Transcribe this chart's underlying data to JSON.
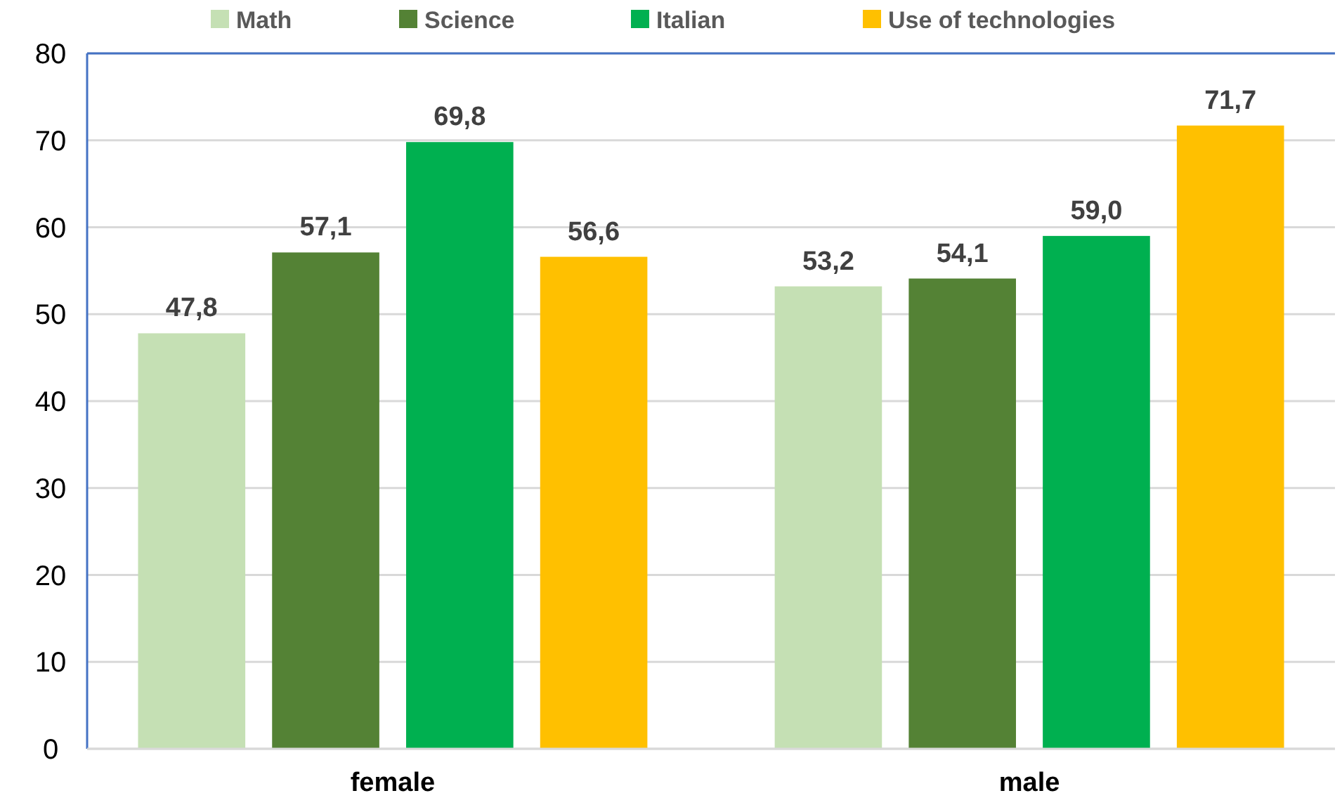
{
  "chart_data": {
    "type": "bar",
    "categories": [
      "female",
      "male"
    ],
    "series": [
      {
        "name": "Math",
        "color": "#c5e0b4",
        "values": [
          47.8,
          53.2
        ],
        "value_labels": [
          "47,8",
          "53,2"
        ]
      },
      {
        "name": "Science",
        "color": "#548235",
        "values": [
          57.1,
          54.1
        ],
        "value_labels": [
          "57,1",
          "54,1"
        ]
      },
      {
        "name": "Italian",
        "color": "#00b050",
        "values": [
          69.8,
          59.0
        ],
        "value_labels": [
          "69,8",
          "59,0"
        ]
      },
      {
        "name": "Use of technologies",
        "color": "#ffc000",
        "values": [
          56.6,
          71.7
        ],
        "value_labels": [
          "56,6",
          "71,7"
        ]
      }
    ],
    "ylim": [
      0,
      80
    ],
    "yticks": [
      0,
      10,
      20,
      30,
      40,
      50,
      60,
      70,
      80
    ],
    "grid": "y",
    "legend": "top"
  }
}
